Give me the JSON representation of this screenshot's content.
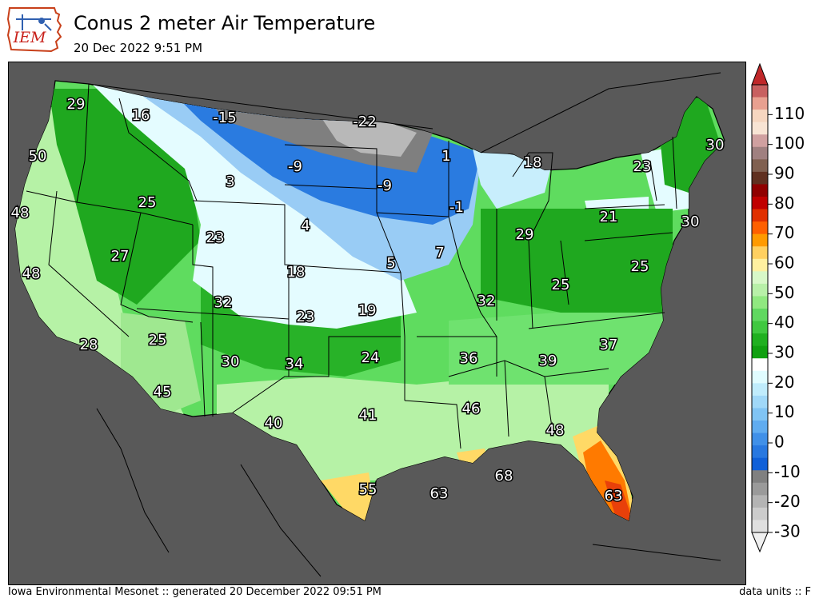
{
  "header": {
    "title": "Conus 2 meter Air Temperature",
    "subtitle": "20 Dec 2022 9:51 PM",
    "logo_text": "IEM"
  },
  "footer": {
    "left": "Iowa Environmental Mesonet :: generated 20 December 2022 09:51 PM",
    "right": "data units :: F"
  },
  "colors": {
    "ocean": "#595959",
    "warm_orange": "#ff7a00",
    "yellow": "#ffd966",
    "light_green": "#b6f2a6",
    "mid_green": "#5fdc5f",
    "dark_green": "#1fa81f",
    "near_freezing": "#e4fcff",
    "light_blue": "#99ccf5",
    "blue": "#2a7be0",
    "dark_gray": "#7f7f7f"
  },
  "colorbar": {
    "tick_labels": [
      "110",
      "100",
      "90",
      "80",
      "70",
      "60",
      "50",
      "40",
      "30",
      "20",
      "10",
      "0",
      "-10",
      "-20",
      "-30"
    ],
    "range": [
      -30,
      120
    ]
  },
  "map": {
    "labels": [
      "29",
      "16",
      "-15",
      "-22",
      "1",
      "18",
      "30",
      "50",
      "25",
      "3",
      "-9",
      "-9",
      "23",
      "48",
      "-1",
      "21",
      "30",
      "4",
      "27",
      "23",
      "29",
      "48",
      "18",
      "5",
      "7",
      "25",
      "32",
      "32",
      "25",
      "23",
      "19",
      "28",
      "25",
      "30",
      "34",
      "24",
      "36",
      "39",
      "37",
      "45",
      "46",
      "40",
      "41",
      "48",
      "55",
      "63",
      "68",
      "63"
    ]
  }
}
